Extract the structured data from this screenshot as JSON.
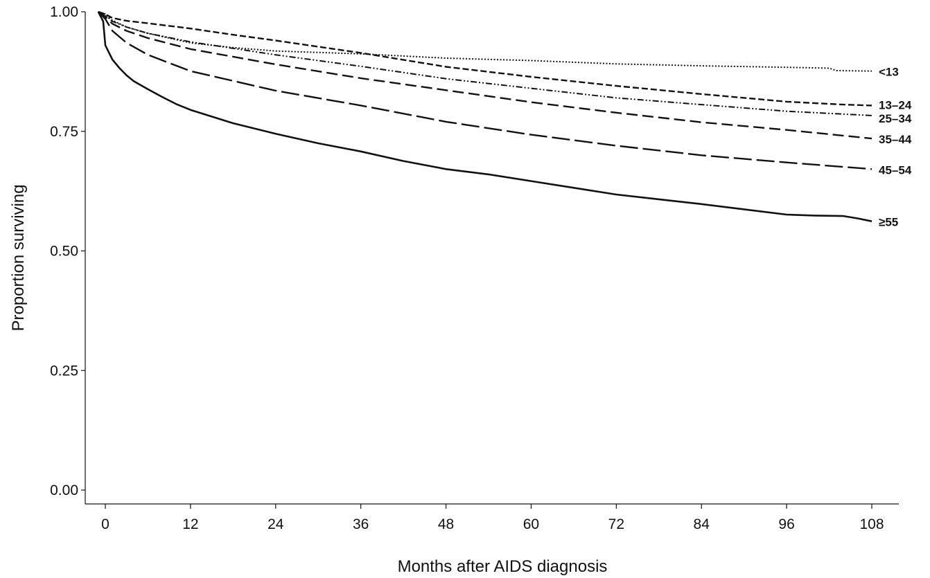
{
  "chart_data": {
    "type": "line",
    "xlabel": "Months after AIDS diagnosis",
    "ylabel": "Proportion surviving",
    "xlim": [
      -1,
      112
    ],
    "ylim": [
      0,
      1
    ],
    "x_ticks": [
      0,
      12,
      24,
      36,
      48,
      60,
      72,
      84,
      96,
      108
    ],
    "x_tick_labels": [
      "0",
      "12",
      "24",
      "36",
      "48",
      "60",
      "72",
      "84",
      "96",
      "108"
    ],
    "y_ticks": [
      0,
      0.25,
      0.5,
      0.75,
      1.0
    ],
    "y_tick_labels": [
      "0.00",
      "0.25",
      "0.50",
      "0.75",
      "1.00"
    ],
    "grid": false,
    "legend": "none",
    "series": [
      {
        "name": "<13",
        "dash": "dotted",
        "points": [
          [
            -1,
            1.0
          ],
          [
            0,
            0.995
          ],
          [
            1,
            0.982
          ],
          [
            3,
            0.968
          ],
          [
            6,
            0.955
          ],
          [
            12,
            0.935
          ],
          [
            18,
            0.925
          ],
          [
            24,
            0.918
          ],
          [
            36,
            0.912
          ],
          [
            48,
            0.903
          ],
          [
            60,
            0.898
          ],
          [
            72,
            0.891
          ],
          [
            84,
            0.887
          ],
          [
            96,
            0.884
          ],
          [
            102,
            0.882
          ],
          [
            103,
            0.877
          ],
          [
            108,
            0.876
          ]
        ]
      },
      {
        "name": "13–24",
        "dash": "dashed-short",
        "points": [
          [
            -1,
            1.0
          ],
          [
            0,
            0.995
          ],
          [
            1,
            0.987
          ],
          [
            3,
            0.981
          ],
          [
            6,
            0.976
          ],
          [
            12,
            0.965
          ],
          [
            18,
            0.952
          ],
          [
            24,
            0.94
          ],
          [
            36,
            0.914
          ],
          [
            48,
            0.885
          ],
          [
            60,
            0.864
          ],
          [
            72,
            0.845
          ],
          [
            84,
            0.828
          ],
          [
            96,
            0.812
          ],
          [
            104,
            0.806
          ],
          [
            108,
            0.804
          ]
        ]
      },
      {
        "name": "25–34",
        "dash": "dash-dot-dot",
        "points": [
          [
            -1,
            1.0
          ],
          [
            0,
            0.993
          ],
          [
            1,
            0.98
          ],
          [
            3,
            0.968
          ],
          [
            6,
            0.955
          ],
          [
            12,
            0.937
          ],
          [
            24,
            0.91
          ],
          [
            36,
            0.886
          ],
          [
            48,
            0.86
          ],
          [
            60,
            0.84
          ],
          [
            72,
            0.82
          ],
          [
            84,
            0.806
          ],
          [
            96,
            0.792
          ],
          [
            108,
            0.783
          ]
        ]
      },
      {
        "name": "35–44",
        "dash": "dashed-medium",
        "points": [
          [
            -1,
            1.0
          ],
          [
            0,
            0.99
          ],
          [
            1,
            0.975
          ],
          [
            3,
            0.96
          ],
          [
            6,
            0.945
          ],
          [
            12,
            0.922
          ],
          [
            24,
            0.89
          ],
          [
            36,
            0.861
          ],
          [
            48,
            0.836
          ],
          [
            60,
            0.811
          ],
          [
            72,
            0.789
          ],
          [
            84,
            0.769
          ],
          [
            96,
            0.753
          ],
          [
            108,
            0.735
          ]
        ]
      },
      {
        "name": "45–54",
        "dash": "dashed-long",
        "points": [
          [
            -1,
            1.0
          ],
          [
            0,
            0.985
          ],
          [
            1,
            0.96
          ],
          [
            3,
            0.935
          ],
          [
            6,
            0.91
          ],
          [
            12,
            0.876
          ],
          [
            24,
            0.835
          ],
          [
            36,
            0.804
          ],
          [
            48,
            0.77
          ],
          [
            60,
            0.743
          ],
          [
            72,
            0.72
          ],
          [
            84,
            0.7
          ],
          [
            96,
            0.685
          ],
          [
            108,
            0.671
          ]
        ]
      },
      {
        "name": "≥55",
        "dash": "solid",
        "points": [
          [
            -1,
            1.0
          ],
          [
            -0.3,
            0.98
          ],
          [
            0,
            0.93
          ],
          [
            1,
            0.9
          ],
          [
            2,
            0.882
          ],
          [
            3,
            0.867
          ],
          [
            4,
            0.855
          ],
          [
            6,
            0.838
          ],
          [
            8,
            0.822
          ],
          [
            10,
            0.807
          ],
          [
            12,
            0.795
          ],
          [
            18,
            0.767
          ],
          [
            24,
            0.745
          ],
          [
            30,
            0.725
          ],
          [
            36,
            0.708
          ],
          [
            42,
            0.688
          ],
          [
            48,
            0.671
          ],
          [
            54,
            0.66
          ],
          [
            60,
            0.646
          ],
          [
            66,
            0.632
          ],
          [
            72,
            0.618
          ],
          [
            78,
            0.608
          ],
          [
            84,
            0.598
          ],
          [
            90,
            0.587
          ],
          [
            96,
            0.576
          ],
          [
            100,
            0.574
          ],
          [
            104,
            0.573
          ],
          [
            106,
            0.568
          ],
          [
            108,
            0.562
          ]
        ]
      }
    ]
  }
}
